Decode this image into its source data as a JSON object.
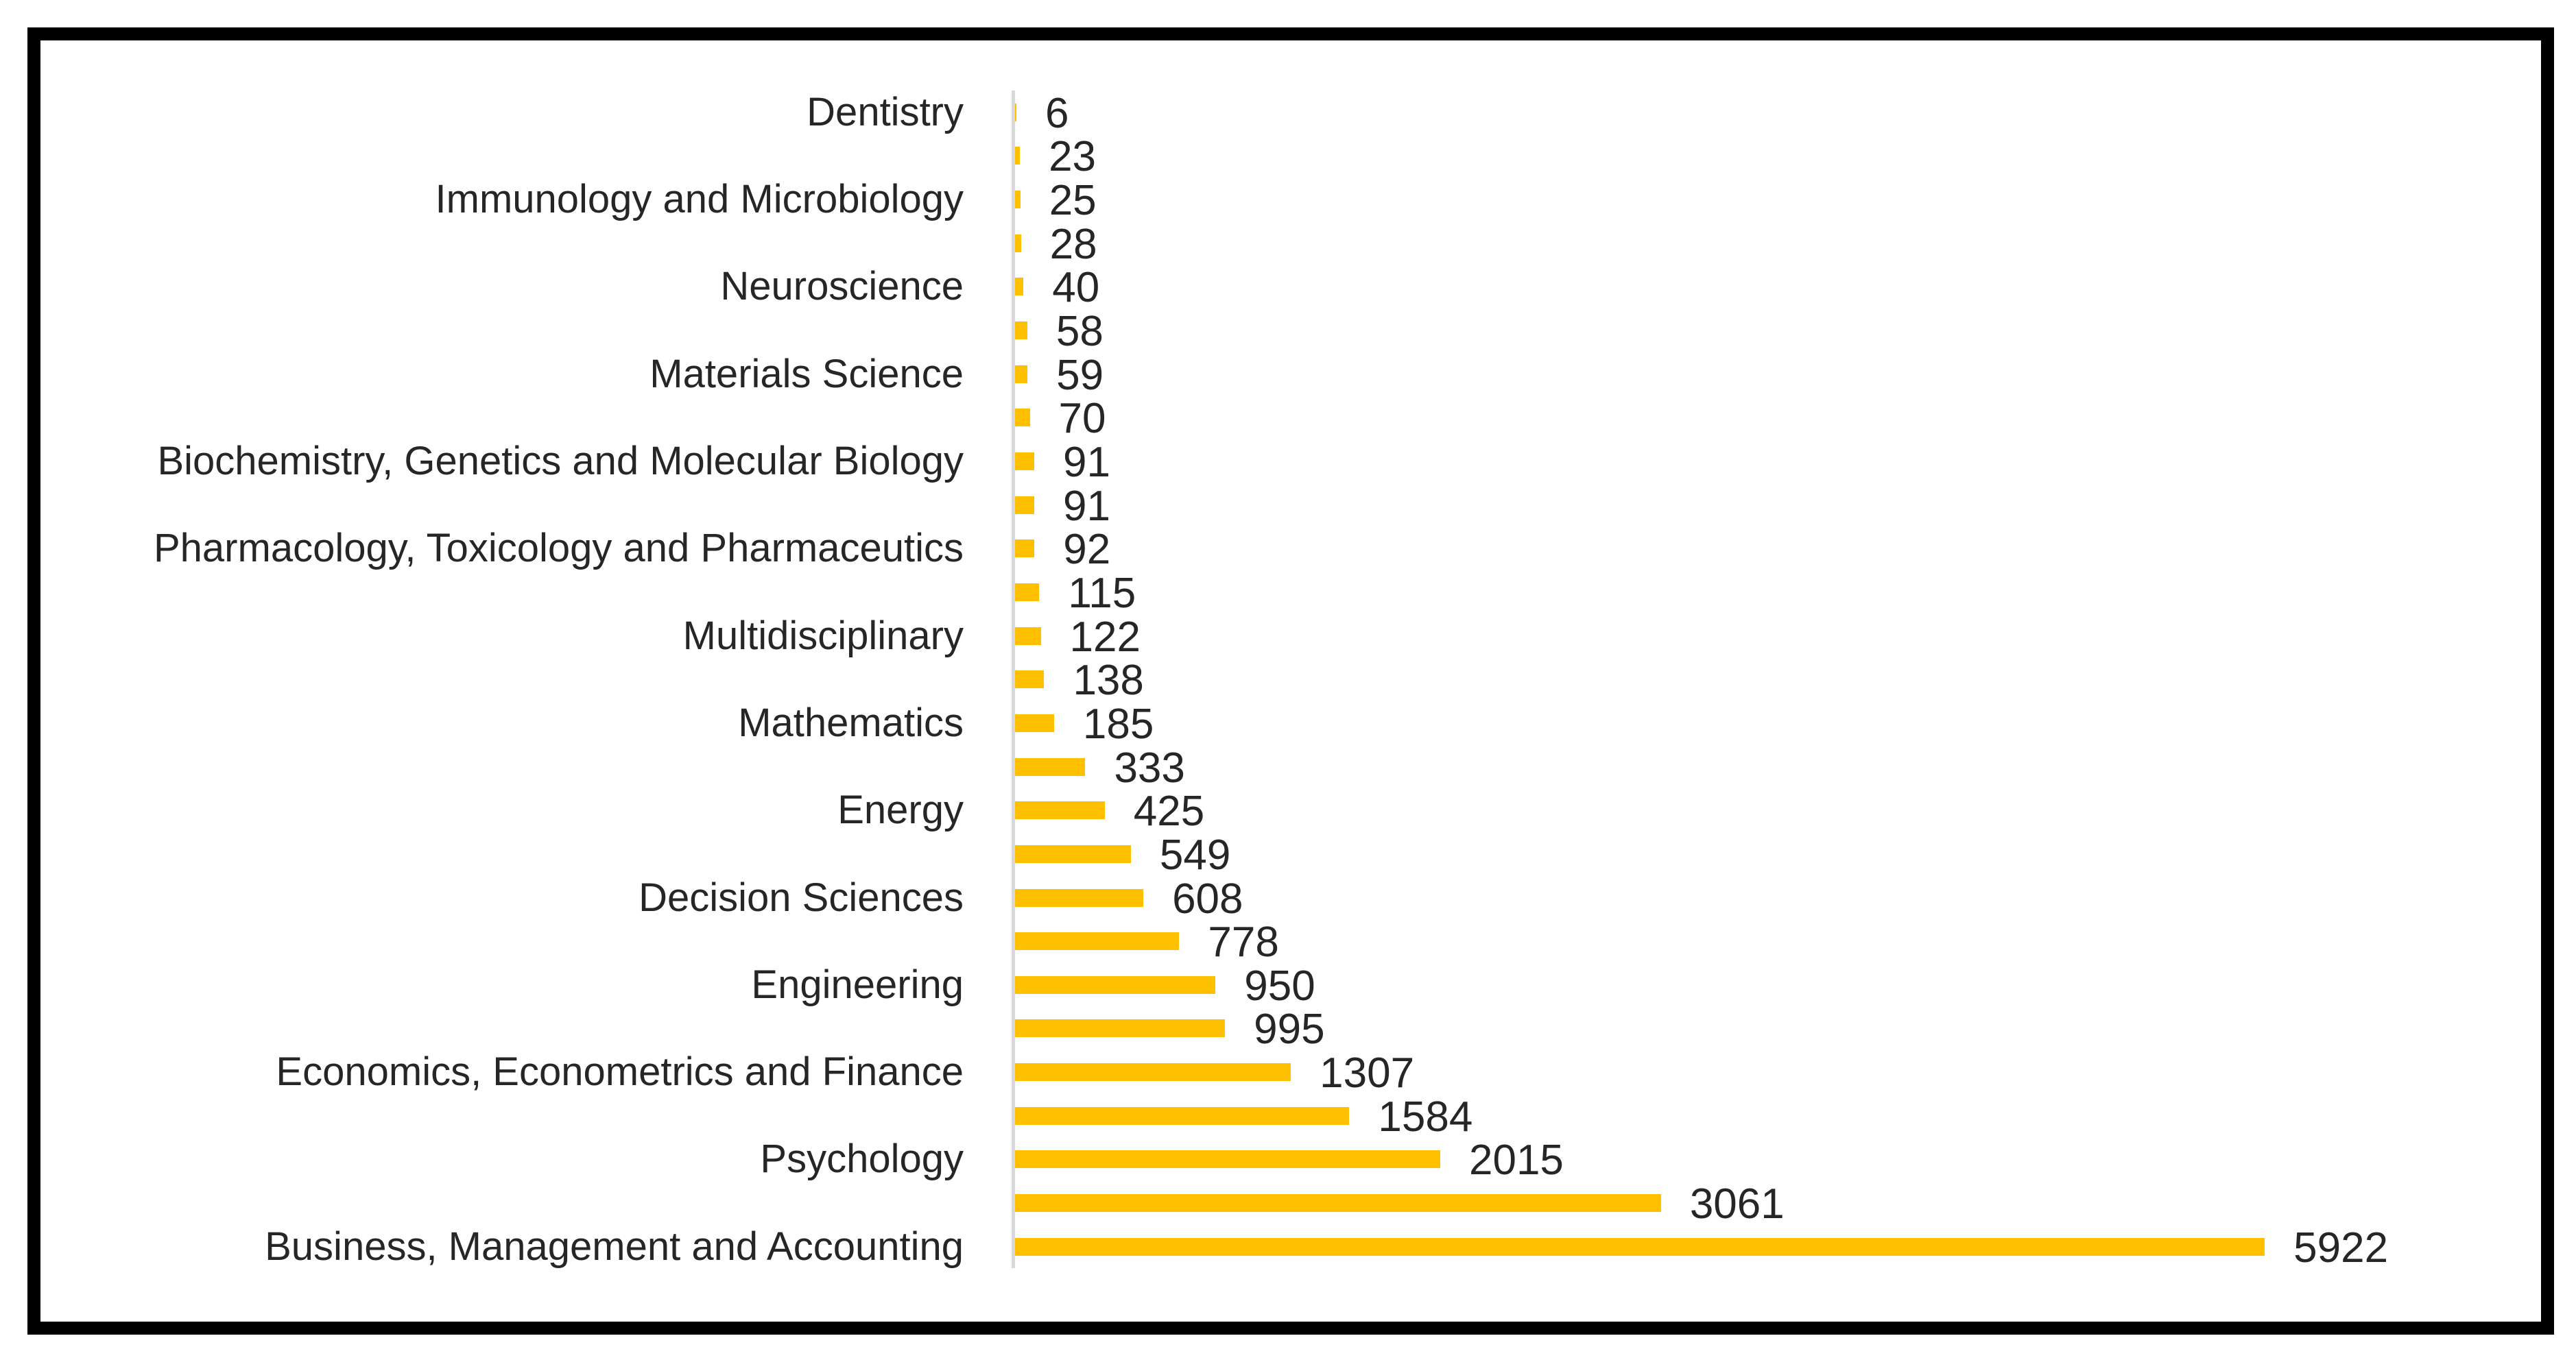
{
  "chart": {
    "bar_color": "#FFC000",
    "axis_line_color": "#D9D9D9",
    "label_color": "#262626",
    "frame_border_color": "#000000",
    "background_color": "#FFFFFF"
  },
  "chart_data": {
    "type": "bar",
    "orientation": "horizontal",
    "title": "",
    "xlabel": "",
    "ylabel": "",
    "grid": false,
    "legend": false,
    "value_labels_position": "end-of-bar",
    "axis_label_scheme": "every-other-category-labeled",
    "xlim": [
      0,
      7000
    ],
    "categories": [
      "Dentistry",
      "",
      "Immunology and Microbiology",
      "",
      "Neuroscience",
      "",
      "Materials Science",
      "",
      "Biochemistry, Genetics and Molecular Biology",
      "",
      "Pharmacology, Toxicology and Pharmaceutics",
      "",
      "Multidisciplinary",
      "",
      "Mathematics",
      "",
      "Energy",
      "",
      "Decision Sciences",
      "",
      "Engineering",
      "",
      "Economics, Econometrics and Finance",
      "",
      "Psychology",
      "",
      "Business, Management and Accounting"
    ],
    "values": [
      6,
      23,
      25,
      28,
      40,
      58,
      59,
      70,
      91,
      91,
      92,
      115,
      122,
      138,
      185,
      333,
      425,
      549,
      608,
      778,
      950,
      995,
      1307,
      1584,
      2015,
      3061,
      5922
    ]
  }
}
